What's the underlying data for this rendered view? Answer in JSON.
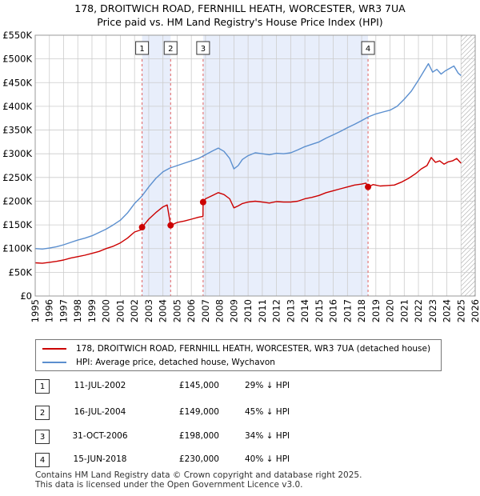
{
  "title_line1": "178, DROITWICH ROAD, FERNHILL HEATH, WORCESTER, WR3 7UA",
  "title_line2": "Price paid vs. HM Land Registry's House Price Index (HPI)",
  "colors": {
    "price": "#cc0000",
    "hpi": "#5b8fcf",
    "shade": "#e8eefb",
    "grid": "#cccccc"
  },
  "legend": {
    "price": "178, DROITWICH ROAD, FERNHILL HEATH, WORCESTER, WR3 7UA (detached house)",
    "hpi": "HPI: Average price, detached house, Wychavon"
  },
  "transactions": [
    {
      "num": "1",
      "date": "11-JUL-2002",
      "price": "£145,000",
      "hpi": "29% ↓ HPI"
    },
    {
      "num": "2",
      "date": "16-JUL-2004",
      "price": "£149,000",
      "hpi": "45% ↓ HPI"
    },
    {
      "num": "3",
      "date": "31-OCT-2006",
      "price": "£198,000",
      "hpi": "34% ↓ HPI"
    },
    {
      "num": "4",
      "date": "15-JUN-2018",
      "price": "£230,000",
      "hpi": "40% ↓ HPI"
    }
  ],
  "footer_line1": "Contains HM Land Registry data © Crown copyright and database right 2025.",
  "footer_line2": "This data is licensed under the Open Government Licence v3.0.",
  "chart_data": {
    "type": "line",
    "title": "178, DROITWICH ROAD, FERNHILL HEATH, WORCESTER, WR3 7UA",
    "subtitle": "Price paid vs. HM Land Registry's House Price Index (HPI)",
    "xlim": [
      1995,
      2026
    ],
    "ylim": [
      0,
      550000
    ],
    "y_ticks": [
      0,
      50000,
      100000,
      150000,
      200000,
      250000,
      300000,
      350000,
      400000,
      450000,
      500000,
      550000
    ],
    "y_tick_labels": [
      "£0",
      "£50K",
      "£100K",
      "£150K",
      "£200K",
      "£250K",
      "£300K",
      "£350K",
      "£400K",
      "£450K",
      "£500K",
      "£550K"
    ],
    "x_ticks": [
      1995,
      1996,
      1997,
      1998,
      1999,
      2000,
      2001,
      2002,
      2003,
      2004,
      2005,
      2006,
      2007,
      2008,
      2009,
      2010,
      2011,
      2012,
      2013,
      2014,
      2015,
      2016,
      2017,
      2018,
      2019,
      2020,
      2021,
      2022,
      2023,
      2024,
      2025,
      2026
    ],
    "x_tick_labels": [
      "1995",
      "1996",
      "1997",
      "1998",
      "1999",
      "2000",
      "2001",
      "2002",
      "2003",
      "2004",
      "2005",
      "2006",
      "2007",
      "2008",
      "2009",
      "2010",
      "2011",
      "2012",
      "2013",
      "2014",
      "2015",
      "2016",
      "2017",
      "2018",
      "2019",
      "2020",
      "2021",
      "2022",
      "2023",
      "2024",
      "2025",
      "2026"
    ],
    "grid": true,
    "shaded_periods": [
      [
        2002.53,
        2004.54
      ],
      [
        2006.83,
        2018.45
      ]
    ],
    "hatched_from": 2025.0,
    "sales": [
      {
        "label": "1",
        "x": 2002.53,
        "y": 145000
      },
      {
        "label": "2",
        "x": 2004.54,
        "y": 149000
      },
      {
        "label": "3",
        "x": 2006.83,
        "y": 198000
      },
      {
        "label": "4",
        "x": 2018.45,
        "y": 230000
      }
    ],
    "series": [
      {
        "name": "178, DROITWICH ROAD, FERNHILL HEATH, WORCESTER, WR3 7UA (detached house)",
        "x": [
          1995.0,
          1995.5,
          1996.0,
          1996.5,
          1997.0,
          1997.5,
          1998.0,
          1998.5,
          1999.0,
          1999.5,
          2000.0,
          2000.5,
          2001.0,
          2001.5,
          2002.0,
          2002.5,
          2002.53,
          2003.0,
          2003.5,
          2004.0,
          2004.3,
          2004.54,
          2005.0,
          2005.5,
          2006.0,
          2006.5,
          2006.82,
          2006.83,
          2007.0,
          2007.5,
          2007.9,
          2008.3,
          2008.7,
          2009.0,
          2009.3,
          2009.6,
          2010.0,
          2010.5,
          2011.0,
          2011.5,
          2012.0,
          2012.5,
          2013.0,
          2013.5,
          2014.0,
          2014.5,
          2015.0,
          2015.5,
          2016.0,
          2016.5,
          2017.0,
          2017.5,
          2018.0,
          2018.3,
          2018.45,
          2018.8,
          2019.3,
          2019.8,
          2020.3,
          2020.8,
          2021.3,
          2021.8,
          2022.2,
          2022.6,
          2022.9,
          2023.2,
          2023.5,
          2023.8,
          2024.1,
          2024.4,
          2024.7,
          2025.0
        ],
        "y": [
          70000,
          69000,
          71000,
          73000,
          76000,
          80000,
          83000,
          86000,
          90000,
          94000,
          100000,
          105000,
          112000,
          122000,
          135000,
          140000,
          145000,
          162000,
          176000,
          188000,
          192000,
          149000,
          155000,
          158000,
          162000,
          166000,
          168000,
          198000,
          205000,
          212000,
          218000,
          214000,
          205000,
          186000,
          190000,
          195000,
          198000,
          200000,
          198000,
          196000,
          199000,
          198000,
          198000,
          200000,
          205000,
          208000,
          212000,
          218000,
          222000,
          226000,
          230000,
          234000,
          236000,
          238000,
          230000,
          235000,
          232000,
          233000,
          234000,
          240000,
          248000,
          258000,
          268000,
          275000,
          292000,
          282000,
          285000,
          278000,
          283000,
          285000,
          290000,
          280000
        ]
      },
      {
        "name": "HPI: Average price, detached house, Wychavon",
        "x": [
          1995.0,
          1995.5,
          1996.0,
          1996.5,
          1997.0,
          1997.5,
          1998.0,
          1998.5,
          1999.0,
          1999.5,
          2000.0,
          2000.5,
          2001.0,
          2001.5,
          2002.0,
          2002.5,
          2003.0,
          2003.5,
          2004.0,
          2004.5,
          2005.0,
          2005.5,
          2006.0,
          2006.5,
          2007.0,
          2007.5,
          2007.9,
          2008.3,
          2008.7,
          2009.0,
          2009.3,
          2009.6,
          2010.0,
          2010.5,
          2011.0,
          2011.5,
          2012.0,
          2012.5,
          2013.0,
          2013.5,
          2014.0,
          2014.5,
          2015.0,
          2015.5,
          2016.0,
          2016.5,
          2017.0,
          2017.5,
          2018.0,
          2018.5,
          2019.0,
          2019.5,
          2020.0,
          2020.5,
          2021.0,
          2021.5,
          2022.0,
          2022.4,
          2022.7,
          2023.0,
          2023.3,
          2023.6,
          2023.9,
          2024.2,
          2024.5,
          2024.8,
          2025.0
        ],
        "y": [
          100000,
          99000,
          101000,
          104000,
          108000,
          113000,
          118000,
          122000,
          127000,
          134000,
          141000,
          150000,
          160000,
          175000,
          195000,
          210000,
          230000,
          248000,
          262000,
          270000,
          275000,
          280000,
          285000,
          290000,
          298000,
          306000,
          312000,
          305000,
          290000,
          268000,
          275000,
          288000,
          296000,
          302000,
          300000,
          298000,
          301000,
          300000,
          302000,
          308000,
          315000,
          320000,
          325000,
          333000,
          340000,
          347000,
          355000,
          362000,
          370000,
          378000,
          384000,
          388000,
          392000,
          400000,
          415000,
          432000,
          455000,
          475000,
          490000,
          472000,
          478000,
          468000,
          475000,
          480000,
          485000,
          470000,
          465000
        ]
      }
    ]
  }
}
